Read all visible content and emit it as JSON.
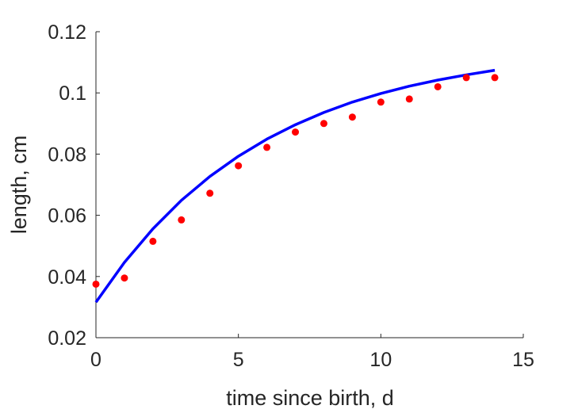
{
  "chart_data": {
    "type": "scatter",
    "title": "",
    "xlabel": "time since birth, d",
    "ylabel": "length, cm",
    "xlim": [
      0,
      15
    ],
    "ylim": [
      0.02,
      0.12
    ],
    "xticks": [
      0,
      5,
      10,
      15
    ],
    "xtick_labels": [
      "0",
      "5",
      "10",
      "15"
    ],
    "yticks": [
      0.02,
      0.04,
      0.06,
      0.08,
      0.1,
      0.12
    ],
    "ytick_labels": [
      "0.02",
      "0.04",
      "0.06",
      "0.08",
      "0.1",
      "0.12"
    ],
    "grid": false,
    "legend": "none",
    "series": [
      {
        "kind": "scatter",
        "color": "#ff0000",
        "x": [
          0,
          1,
          2,
          3,
          4,
          5,
          6,
          7,
          8,
          9,
          10,
          11,
          12,
          13,
          14
        ],
        "y": [
          0.0375,
          0.0395,
          0.0515,
          0.0585,
          0.0672,
          0.0762,
          0.0822,
          0.0872,
          0.09,
          0.0921,
          0.097,
          0.098,
          0.102,
          0.105,
          0.105
        ]
      },
      {
        "kind": "line",
        "color": "#0000ff",
        "x": [
          0,
          1,
          2,
          3,
          4,
          5,
          6,
          7,
          8,
          9,
          10,
          11,
          12,
          13,
          14
        ],
        "y": [
          0.0316,
          0.0446,
          0.0556,
          0.0649,
          0.0727,
          0.0793,
          0.0849,
          0.0896,
          0.0936,
          0.097,
          0.0998,
          0.1022,
          0.1042,
          0.1059,
          0.1074
        ]
      }
    ]
  }
}
